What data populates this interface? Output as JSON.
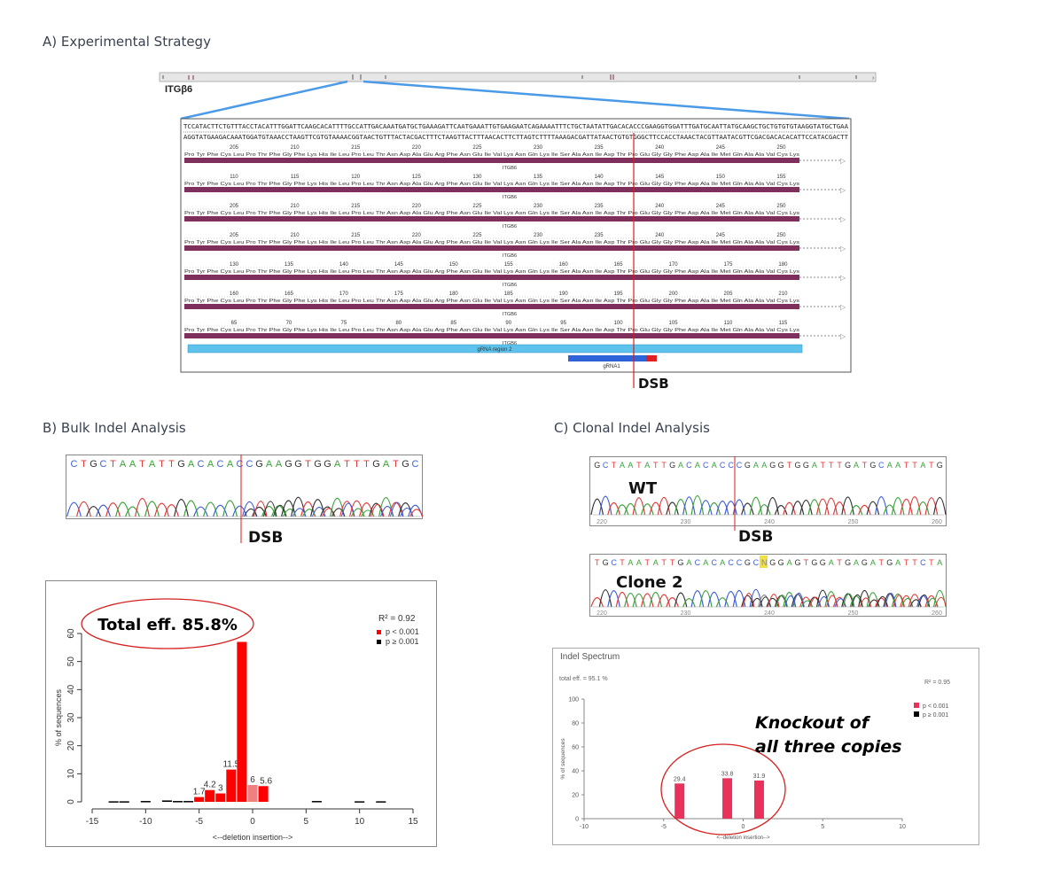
{
  "sections": {
    "a_title": "A) Experimental Strategy",
    "b_title": "B) Bulk Indel Analysis",
    "c_title": "C) Clonal Indel Analysis"
  },
  "strategy": {
    "gene_label": "ITGβ6",
    "seq_top": "TCCATACTTCTGTTTACCTACATTTGGATTCAAGCACATTTTGCCATTGACAAATGATGCTGAAAGATTCAATGAAATTGTGAAGAATCAGAAAATTTCTGCTAATATTGACACACCCGAAGGTGGATTTGATGCAATTATGCAAGCTGCTGTGTGTAAGGTATGCTGAA",
    "seq_bottom": "AGGTATGAAGACAAATGGATGTAAACCTAAGTTCGTGTAAAACGGTAACTGTTTACTACGACTTTCTAAGTTACTTTAACACTTCTTAGTCTTTTAAAGACGATTATAACTGTGTGGGCTTCCACCTAAACTACGTTAATACGTTCGACGACACACATTCCATACGACTT",
    "aa_text": "Pro Tyr Phe Cys Leu Pro Thr Phe Gly Phe Lys His Ile Leu Pro Leu Thr Asn Asp Ala Glu Arg Phe Asn Glu Ile Val Lys Asn Gln Lys Ile Ser Ala Asn Ile Asp Thr Pro Glu Gly Gly Phe Asp Ala Ile Met Gln Ala Ala Val Cys Lys",
    "track_label": "ITGB6",
    "tracks": [
      {
        "nums": [
          "205",
          "210",
          "215",
          "220",
          "225",
          "230",
          "235",
          "240",
          "245",
          "250"
        ]
      },
      {
        "nums": [
          "110",
          "115",
          "120",
          "125",
          "130",
          "135",
          "140",
          "145",
          "150",
          "155"
        ]
      },
      {
        "nums": [
          "205",
          "210",
          "215",
          "220",
          "225",
          "230",
          "235",
          "240",
          "245",
          "250"
        ]
      },
      {
        "nums": [
          "205",
          "210",
          "215",
          "220",
          "225",
          "230",
          "235",
          "240",
          "245",
          "250"
        ]
      },
      {
        "nums": [
          "130",
          "135",
          "140",
          "145",
          "150",
          "155",
          "160",
          "165",
          "170",
          "175",
          "180"
        ]
      },
      {
        "nums": [
          "160",
          "165",
          "170",
          "175",
          "180",
          "185",
          "190",
          "195",
          "200",
          "205",
          "210"
        ]
      },
      {
        "nums": [
          "65",
          "70",
          "75",
          "80",
          "85",
          "90",
          "95",
          "100",
          "105",
          "110",
          "115"
        ]
      }
    ],
    "grna_region": "gRNA region 2",
    "grna1": "gRNA1",
    "dsb": "DSB"
  },
  "bulk": {
    "seq": "CTGCTAATATTGACACACCGAAGGTGGATTTGATGC",
    "dsb": "DSB"
  },
  "clonal": {
    "wt_seq": "GCTAATATTGACACACCCGAAGGTGGATTTGATGCAATTATG",
    "wt_label": "WT",
    "wt_ticks": [
      "220",
      "230",
      "240",
      "250",
      "260"
    ],
    "dsb": "DSB",
    "clone_seq": "TGCTAATATTGACACACCGCNGGAGTGGATGAGATGATTCTA",
    "clone_label": "Clone 2",
    "clone_ticks": [
      "220",
      "230",
      "240",
      "250",
      "260"
    ]
  },
  "chart_data": [
    {
      "type": "bar",
      "annotation": "Total eff. 85.8%",
      "r2_label": "R² = 0.92",
      "legend": [
        "p < 0.001",
        "p ≥ 0.001"
      ],
      "xlabel": "<--deletion    insertion-->",
      "ylabel": "% of sequences",
      "xlim": [
        -15,
        15
      ],
      "ylim": [
        0,
        60
      ],
      "xticks": [
        "-15",
        "-10",
        "-5",
        "0",
        "5",
        "10",
        "15"
      ],
      "yticks": [
        "0",
        "10",
        "20",
        "30",
        "40",
        "50",
        "60"
      ],
      "colors": {
        "sig": "#ff0000",
        "nonsig": "#000000",
        "light": "#f08080"
      },
      "bars": [
        {
          "x": -13,
          "y": 0.2,
          "sig": false
        },
        {
          "x": -12,
          "y": 0.2,
          "sig": false
        },
        {
          "x": -10,
          "y": 0.3,
          "sig": false
        },
        {
          "x": -8,
          "y": 0.5,
          "sig": false
        },
        {
          "x": -7,
          "y": 0.3,
          "sig": false
        },
        {
          "x": -6,
          "y": 0.3,
          "sig": false
        },
        {
          "x": -5,
          "y": 1.7,
          "sig": true,
          "label": "1.7"
        },
        {
          "x": -4,
          "y": 4.2,
          "sig": true,
          "label": "4.2"
        },
        {
          "x": -3,
          "y": 3,
          "sig": true,
          "label": "3"
        },
        {
          "x": -2,
          "y": 11.5,
          "sig": true,
          "label": "11.5"
        },
        {
          "x": -1,
          "y": 57,
          "sig": true
        },
        {
          "x": 0,
          "y": 6,
          "sig": true,
          "light": true,
          "label": "6"
        },
        {
          "x": 1,
          "y": 5.6,
          "sig": true,
          "label": "5.6"
        },
        {
          "x": 6,
          "y": 0.3,
          "sig": false
        },
        {
          "x": 10,
          "y": 0.2,
          "sig": false
        },
        {
          "x": 12,
          "y": 0.2,
          "sig": false
        }
      ]
    },
    {
      "type": "bar",
      "title": "Indel Spectrum",
      "subtitle": "total eff. = 95.1 %",
      "r2_label": "R² = 0.95",
      "annotation_line1": "Knockout of",
      "annotation_line2": "all three copies",
      "legend": [
        "p < 0.001",
        "p ≥ 0.001"
      ],
      "xlabel": "<--deletion    insertion-->",
      "ylabel": "% of sequences",
      "xlim": [
        -10,
        10
      ],
      "ylim": [
        0,
        100
      ],
      "xticks": [
        "-10",
        "-5",
        "0",
        "5",
        "10"
      ],
      "yticks": [
        "0",
        "20",
        "40",
        "60",
        "80",
        "100"
      ],
      "colors": {
        "sig": "#e8325c",
        "nonsig": "#000000"
      },
      "bars": [
        {
          "x": -4,
          "y": 29.4,
          "label": "29.4"
        },
        {
          "x": -1,
          "y": 33.8,
          "label": "33.8"
        },
        {
          "x": 1,
          "y": 31.9,
          "label": "31.9"
        }
      ]
    }
  ]
}
